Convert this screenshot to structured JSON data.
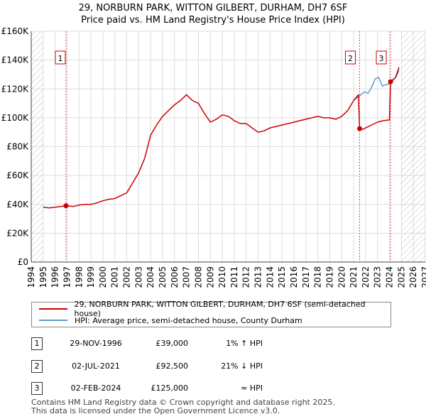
{
  "header": {
    "title": "29, NORBURN PARK, WITTON GILBERT, DURHAM, DH7 6SF",
    "subtitle": "Price paid vs. HM Land Registry's House Price Index (HPI)"
  },
  "colors": {
    "property_line": "#cc0000",
    "hpi_line": "#6699cc",
    "vline": "#dd4444",
    "hatch": "#bbbbbb",
    "grid": "#dddddd",
    "marker_border": "#cc0000"
  },
  "legend": {
    "property_label": "29, NORBURN PARK, WITTON GILBERT, DURHAM, DH7 6SF (semi-detached house)",
    "hpi_label": "HPI: Average price, semi-detached house, County Durham"
  },
  "transactions": [
    {
      "num": "1",
      "date": "29-NOV-1996",
      "price": "£39,000",
      "hpi": "1% ↑ HPI"
    },
    {
      "num": "2",
      "date": "02-JUL-2021",
      "price": "£92,500",
      "hpi": "21% ↓ HPI"
    },
    {
      "num": "3",
      "date": "02-FEB-2024",
      "price": "£125,000",
      "hpi": "≈ HPI"
    }
  ],
  "footer": {
    "line1": "Contains HM Land Registry data © Crown copyright and database right 2025.",
    "line2": "This data is licensed under the Open Government Licence v3.0."
  },
  "chart_data": {
    "type": "line",
    "title": "29, NORBURN PARK, WITTON GILBERT, DURHAM, DH7 6SF",
    "subtitle": "Price paid vs. HM Land Registry's House Price Index (HPI)",
    "xlabel": "",
    "ylabel": "",
    "xlim": [
      1994,
      2027
    ],
    "ylim": [
      0,
      160000
    ],
    "x_ticks": [
      1994,
      1995,
      1996,
      1997,
      1998,
      1999,
      2000,
      2001,
      2002,
      2003,
      2004,
      2005,
      2006,
      2007,
      2008,
      2009,
      2010,
      2011,
      2012,
      2013,
      2014,
      2015,
      2016,
      2017,
      2018,
      2019,
      2020,
      2021,
      2022,
      2023,
      2024,
      2025,
      2026,
      2027
    ],
    "y_ticks": [
      0,
      20000,
      40000,
      60000,
      80000,
      100000,
      120000,
      140000,
      160000
    ],
    "y_tick_labels": [
      "£0",
      "£20K",
      "£40K",
      "£60K",
      "£80K",
      "£100K",
      "£120K",
      "£140K",
      "£160K"
    ],
    "grid": true,
    "hatched_ranges": [
      [
        1994,
        1995.0
      ],
      [
        2025.0,
        2027
      ]
    ],
    "series": [
      {
        "name": "29, NORBURN PARK, WITTON GILBERT, DURHAM, DH7 6SF (semi-detached house)",
        "x": [
          1995.0,
          1995.5,
          1996.0,
          1996.5,
          1996.91,
          1997.5,
          1998.0,
          1998.5,
          1999.0,
          1999.5,
          2000.0,
          2000.5,
          2001.0,
          2001.5,
          2002.0,
          2002.5,
          2003.0,
          2003.5,
          2004.0,
          2004.5,
          2005.0,
          2005.5,
          2006.0,
          2006.5,
          2007.0,
          2007.5,
          2008.0,
          2008.5,
          2009.0,
          2009.5,
          2010.0,
          2010.5,
          2011.0,
          2011.5,
          2012.0,
          2012.5,
          2013.0,
          2013.5,
          2014.0,
          2014.5,
          2015.0,
          2015.5,
          2016.0,
          2016.5,
          2017.0,
          2017.5,
          2018.0,
          2018.5,
          2019.0,
          2019.5,
          2020.0,
          2020.5,
          2021.0,
          2021.4,
          2021.5,
          2021.8,
          2022.0,
          2022.5,
          2023.0,
          2023.5,
          2024.0,
          2024.09,
          2024.5,
          2024.8
        ],
        "values": [
          38000,
          37500,
          38000,
          38500,
          39000,
          38500,
          39500,
          40000,
          40000,
          41000,
          42500,
          43500,
          44000,
          46000,
          48000,
          55000,
          62000,
          72000,
          88000,
          95000,
          101000,
          105000,
          109000,
          112000,
          116000,
          112000,
          110000,
          103000,
          97000,
          99000,
          102000,
          101000,
          98000,
          96000,
          96000,
          93000,
          90000,
          91000,
          93000,
          94000,
          95000,
          96000,
          97000,
          98000,
          99000,
          100000,
          101000,
          100000,
          100000,
          99000,
          101000,
          105000,
          112000,
          116000,
          92500,
          92000,
          93000,
          95000,
          97000,
          98000,
          98500,
          125000,
          128000,
          135000
        ]
      },
      {
        "name": "HPI: Average price, semi-detached house, County Durham",
        "x": [
          2021.0,
          2021.3,
          2021.6,
          2021.9,
          2022.2,
          2022.5,
          2022.8,
          2023.1,
          2023.4,
          2023.7,
          2024.0,
          2024.3,
          2024.6,
          2024.8
        ],
        "values": [
          112000,
          114000,
          116000,
          118000,
          117000,
          121000,
          127000,
          128000,
          122000,
          123000,
          123500,
          126000,
          129000,
          133000
        ]
      }
    ],
    "sale_markers": [
      {
        "label": "1",
        "x": 1996.91,
        "value": 39000
      },
      {
        "label": "2",
        "x": 2021.5,
        "value": 92500
      },
      {
        "label": "3",
        "x": 2024.09,
        "value": 125000
      }
    ]
  }
}
